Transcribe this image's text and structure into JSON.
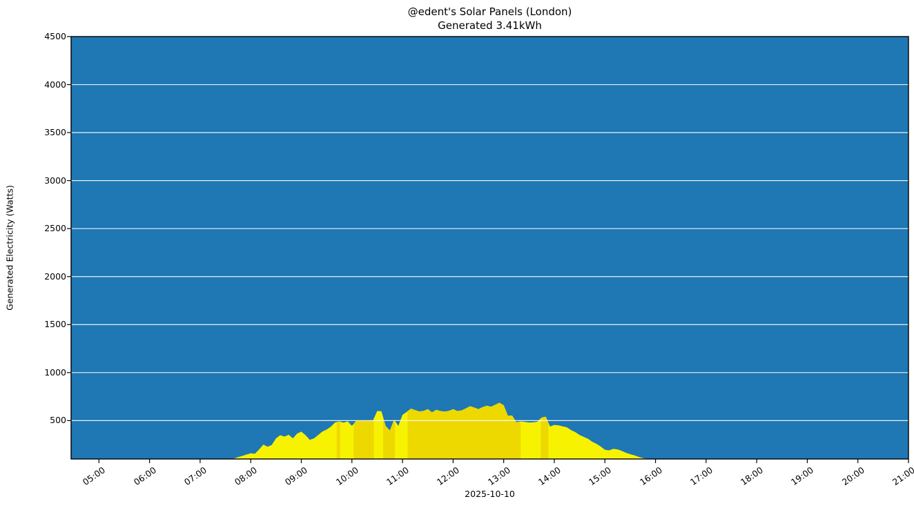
{
  "figure": {
    "title": "@edent's Solar Panels (London)",
    "subtitle": "Generated 3.41kWh",
    "date_label": "2025-10-10",
    "y_axis_title": "Generated Electricity (Watts)"
  },
  "colors": {
    "plot_background": "#1f77b4",
    "area_yellow": "#f7f300",
    "area_gold": "#edd800",
    "gridline": "#ffffff",
    "spine": "#000000",
    "tick": "#000000",
    "text": "#000000",
    "figure_background": "#ffffff"
  },
  "chart_data": {
    "type": "area",
    "title": "@edent's Solar Panels (London)",
    "subtitle": "Generated 3.41kWh",
    "xlabel": "2025-10-10",
    "ylabel": "Generated Electricity (Watts)",
    "grid": "horizontal-white",
    "legend": "none",
    "ylim": [
      100,
      4500
    ],
    "xlim_hours": [
      4.45,
      21.0
    ],
    "y_ticks": [
      500,
      1000,
      1500,
      2000,
      2500,
      3000,
      3500,
      4000,
      4500
    ],
    "x_ticks": [
      "05:00",
      "06:00",
      "07:00",
      "08:00",
      "09:00",
      "10:00",
      "11:00",
      "12:00",
      "13:00",
      "14:00",
      "15:00",
      "16:00",
      "17:00",
      "18:00",
      "19:00",
      "20:00",
      "21:00"
    ],
    "gold_band_times": [
      [
        "09:42",
        "09:46"
      ],
      [
        "10:02",
        "10:26"
      ],
      [
        "10:37",
        "10:51"
      ],
      [
        "11:06",
        "13:20"
      ],
      [
        "13:44",
        "13:53"
      ]
    ],
    "series": [
      {
        "name": "generated-watts",
        "points": [
          [
            "07:40",
            105
          ],
          [
            "07:45",
            120
          ],
          [
            "07:50",
            132
          ],
          [
            "07:55",
            147
          ],
          [
            "08:00",
            160
          ],
          [
            "08:05",
            155
          ],
          [
            "08:10",
            200
          ],
          [
            "08:15",
            250
          ],
          [
            "08:20",
            228
          ],
          [
            "08:25",
            247
          ],
          [
            "08:30",
            315
          ],
          [
            "08:35",
            348
          ],
          [
            "08:40",
            334
          ],
          [
            "08:45",
            352
          ],
          [
            "08:50",
            315
          ],
          [
            "08:55",
            365
          ],
          [
            "09:00",
            385
          ],
          [
            "09:05",
            348
          ],
          [
            "09:10",
            300
          ],
          [
            "09:15",
            315
          ],
          [
            "09:20",
            350
          ],
          [
            "09:25",
            386
          ],
          [
            "09:30",
            406
          ],
          [
            "09:35",
            436
          ],
          [
            "09:40",
            480
          ],
          [
            "09:45",
            492
          ],
          [
            "09:50",
            478
          ],
          [
            "09:55",
            492
          ],
          [
            "10:00",
            445
          ],
          [
            "10:05",
            497
          ],
          [
            "10:10",
            500
          ],
          [
            "10:15",
            495
          ],
          [
            "10:20",
            500
          ],
          [
            "10:25",
            502
          ],
          [
            "10:30",
            600
          ],
          [
            "10:35",
            598
          ],
          [
            "10:40",
            445
          ],
          [
            "10:45",
            398
          ],
          [
            "10:50",
            510
          ],
          [
            "10:55",
            445
          ],
          [
            "11:00",
            560
          ],
          [
            "11:05",
            590
          ],
          [
            "11:10",
            625
          ],
          [
            "11:15",
            610
          ],
          [
            "11:20",
            595
          ],
          [
            "11:25",
            602
          ],
          [
            "11:30",
            620
          ],
          [
            "11:35",
            586
          ],
          [
            "11:40",
            612
          ],
          [
            "11:45",
            600
          ],
          [
            "11:50",
            594
          ],
          [
            "11:55",
            602
          ],
          [
            "12:00",
            620
          ],
          [
            "12:05",
            600
          ],
          [
            "12:10",
            606
          ],
          [
            "12:15",
            626
          ],
          [
            "12:20",
            650
          ],
          [
            "12:25",
            636
          ],
          [
            "12:30",
            620
          ],
          [
            "12:35",
            640
          ],
          [
            "12:40",
            655
          ],
          [
            "12:45",
            645
          ],
          [
            "12:50",
            665
          ],
          [
            "12:55",
            686
          ],
          [
            "13:00",
            660
          ],
          [
            "13:05",
            550
          ],
          [
            "13:10",
            553
          ],
          [
            "13:15",
            482
          ],
          [
            "13:20",
            492
          ],
          [
            "13:25",
            486
          ],
          [
            "13:30",
            480
          ],
          [
            "13:35",
            482
          ],
          [
            "13:40",
            488
          ],
          [
            "13:45",
            532
          ],
          [
            "13:50",
            540
          ],
          [
            "13:55",
            438
          ],
          [
            "14:00",
            455
          ],
          [
            "14:05",
            450
          ],
          [
            "14:10",
            440
          ],
          [
            "14:15",
            430
          ],
          [
            "14:20",
            400
          ],
          [
            "14:25",
            380
          ],
          [
            "14:30",
            350
          ],
          [
            "14:35",
            330
          ],
          [
            "14:40",
            310
          ],
          [
            "14:45",
            280
          ],
          [
            "14:50",
            258
          ],
          [
            "14:55",
            230
          ],
          [
            "15:00",
            196
          ],
          [
            "15:05",
            190
          ],
          [
            "15:10",
            206
          ],
          [
            "15:15",
            200
          ],
          [
            "15:20",
            184
          ],
          [
            "15:25",
            165
          ],
          [
            "15:30",
            150
          ],
          [
            "15:35",
            138
          ],
          [
            "15:40",
            122
          ],
          [
            "15:45",
            110
          ],
          [
            "15:50",
            100
          ]
        ]
      }
    ]
  }
}
